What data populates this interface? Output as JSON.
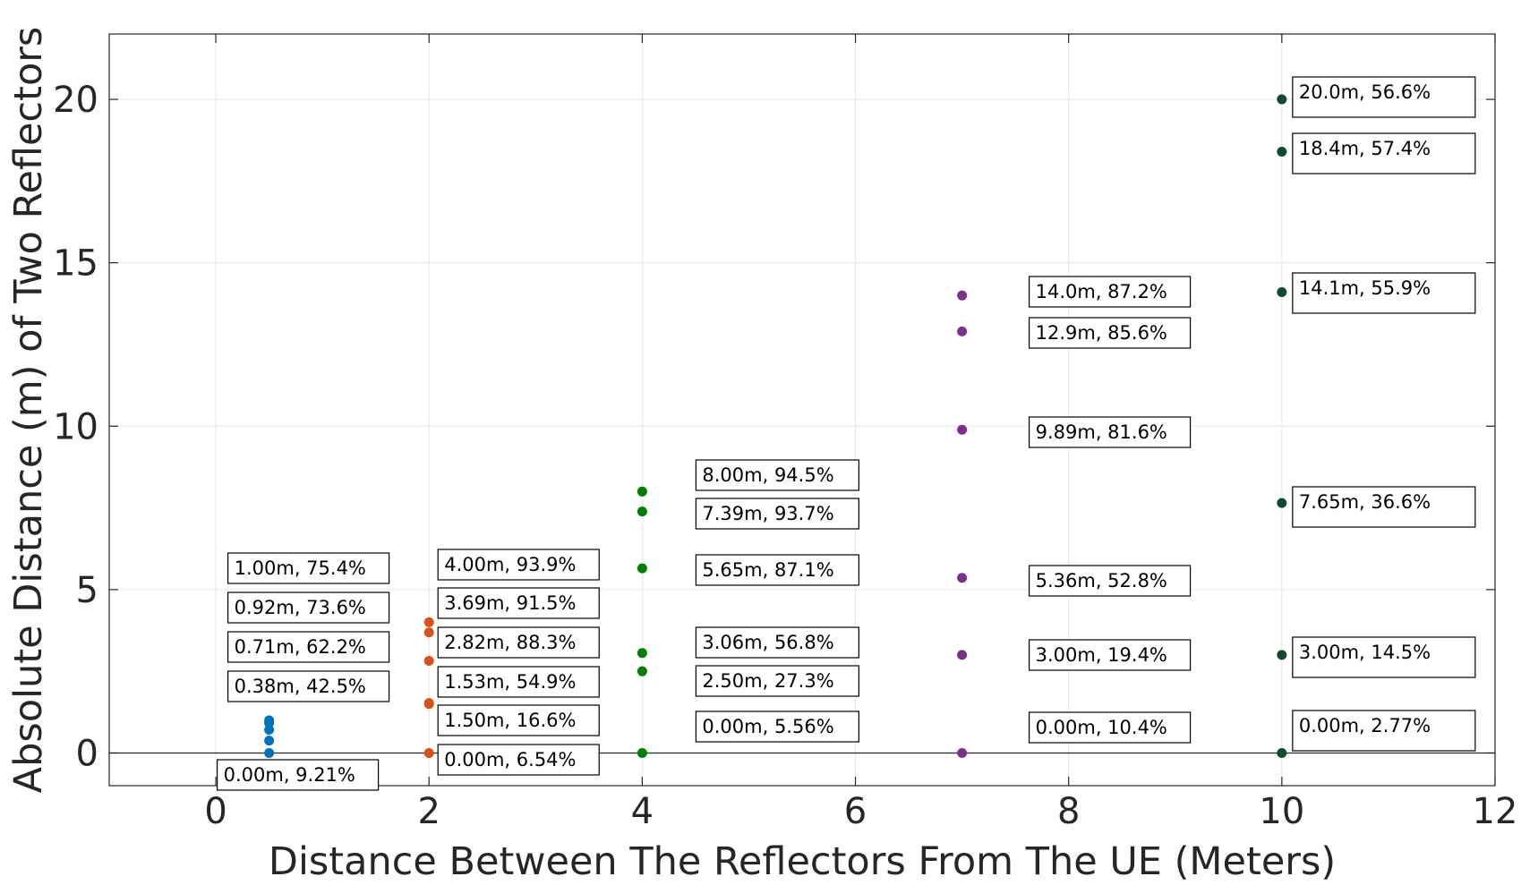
{
  "chart_data": {
    "type": "scatter",
    "xlabel": "Distance Between The Reflectors From The UE (Meters)",
    "ylabel": "Absolute Distance (m) of Two Reflectors",
    "xlim": [
      -1,
      12
    ],
    "ylim": [
      -1,
      22
    ],
    "xticks": [
      0,
      2,
      4,
      6,
      8,
      10,
      12
    ],
    "yticks": [
      0,
      5,
      10,
      15,
      20
    ],
    "grid": true,
    "series": [
      {
        "color": "#0072BD",
        "points": [
          {
            "x": 0.5,
            "y": 1.0,
            "label": "1.00m, 75.4%"
          },
          {
            "x": 0.5,
            "y": 0.92,
            "label": "0.92m, 73.6%"
          },
          {
            "x": 0.5,
            "y": 0.71,
            "label": "0.71m, 62.2%"
          },
          {
            "x": 0.5,
            "y": 0.38,
            "label": "0.38m, 42.5%"
          },
          {
            "x": 0.5,
            "y": 0.0,
            "label": "0.00m, 9.21%"
          }
        ]
      },
      {
        "color": "#D95319",
        "points": [
          {
            "x": 2,
            "y": 4.0,
            "label": "4.00m, 93.9%"
          },
          {
            "x": 2,
            "y": 3.69,
            "label": "3.69m, 91.5%"
          },
          {
            "x": 2,
            "y": 2.82,
            "label": "2.82m, 88.3%"
          },
          {
            "x": 2,
            "y": 1.53,
            "label": "1.53m, 54.9%"
          },
          {
            "x": 2,
            "y": 1.5,
            "label": "1.50m, 16.6%"
          },
          {
            "x": 2,
            "y": 0.0,
            "label": "0.00m, 6.54%"
          }
        ]
      },
      {
        "color": "#008000",
        "points": [
          {
            "x": 4,
            "y": 8.0,
            "label": "8.00m, 94.5%"
          },
          {
            "x": 4,
            "y": 7.39,
            "label": "7.39m, 93.7%"
          },
          {
            "x": 4,
            "y": 5.65,
            "label": "5.65m, 87.1%"
          },
          {
            "x": 4,
            "y": 3.06,
            "label": "3.06m, 56.8%"
          },
          {
            "x": 4,
            "y": 2.5,
            "label": "2.50m, 27.3%"
          },
          {
            "x": 4,
            "y": 0.0,
            "label": "0.00m, 5.56%"
          }
        ]
      },
      {
        "color": "#7E2F8E",
        "points": [
          {
            "x": 7,
            "y": 14.0,
            "label": "14.0m, 87.2%"
          },
          {
            "x": 7,
            "y": 12.9,
            "label": "12.9m, 85.6%"
          },
          {
            "x": 7,
            "y": 9.89,
            "label": "9.89m, 81.6%"
          },
          {
            "x": 7,
            "y": 5.36,
            "label": "5.36m, 52.8%"
          },
          {
            "x": 7,
            "y": 3.0,
            "label": "3.00m, 19.4%"
          },
          {
            "x": 7,
            "y": 0.0,
            "label": "0.00m, 10.4%"
          }
        ]
      },
      {
        "color": "#124A2F",
        "points": [
          {
            "x": 10,
            "y": 20.0,
            "label": "20.0m, 56.6%"
          },
          {
            "x": 10,
            "y": 18.4,
            "label": "18.4m, 57.4%"
          },
          {
            "x": 10,
            "y": 14.1,
            "label": "14.1m, 55.9%"
          },
          {
            "x": 10,
            "y": 7.65,
            "label": "7.65m, 36.6%"
          },
          {
            "x": 10,
            "y": 3.0,
            "label": "3.00m, 14.5%"
          },
          {
            "x": 10,
            "y": 0.0,
            "label": "0.00m, 2.77%"
          }
        ]
      }
    ]
  }
}
